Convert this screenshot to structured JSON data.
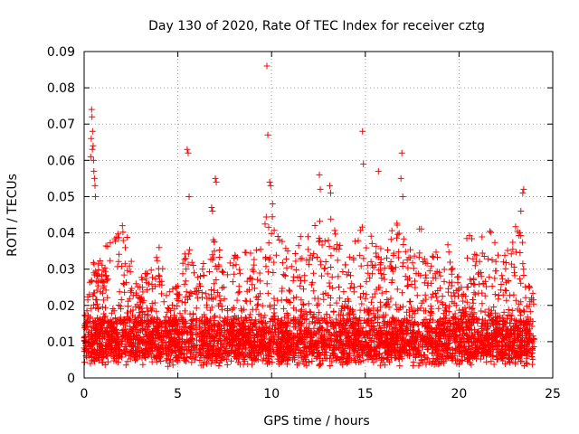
{
  "chart_data": {
    "type": "scatter",
    "title": "Day 130 of 2020, Rate Of TEC Index for receiver cztg",
    "xlabel": "GPS time / hours",
    "ylabel": "ROTI / TECUs",
    "xlim": [
      0,
      25
    ],
    "ylim": [
      0,
      0.09
    ],
    "x_ticks": [
      0,
      5,
      10,
      15,
      20,
      25
    ],
    "y_ticks": [
      0,
      0.01,
      0.02,
      0.03,
      0.04,
      0.05,
      0.06,
      0.07,
      0.08,
      0.09
    ],
    "x_tick_labels": [
      "0",
      "5",
      "10",
      "15",
      "20",
      "25"
    ],
    "y_tick_labels": [
      "0",
      "0.01",
      "0.02",
      "0.03",
      "0.04",
      "0.05",
      "0.06",
      "0.07",
      "0.08",
      "0.09"
    ],
    "grid": true,
    "marker": "+",
    "marker_color": "#ff0000",
    "time_range_hours": [
      0,
      24
    ],
    "baseline_band": [
      0.005,
      0.015
    ],
    "series": [
      {
        "name": "ROTI",
        "points": [
          [
            0.4,
            0.074
          ],
          [
            0.42,
            0.072
          ],
          [
            0.45,
            0.068
          ],
          [
            0.48,
            0.064
          ],
          [
            0.5,
            0.06
          ],
          [
            0.52,
            0.057
          ],
          [
            0.55,
            0.055
          ],
          [
            0.58,
            0.053
          ],
          [
            0.6,
            0.05
          ],
          [
            0.35,
            0.061
          ],
          [
            0.38,
            0.066
          ],
          [
            0.44,
            0.063
          ],
          [
            5.5,
            0.063
          ],
          [
            5.55,
            0.062
          ],
          [
            5.6,
            0.05
          ],
          [
            6.8,
            0.047
          ],
          [
            6.85,
            0.046
          ],
          [
            7.0,
            0.055
          ],
          [
            7.05,
            0.054
          ],
          [
            9.75,
            0.086
          ],
          [
            9.8,
            0.067
          ],
          [
            9.9,
            0.054
          ],
          [
            9.95,
            0.053
          ],
          [
            10.05,
            0.048
          ],
          [
            12.55,
            0.056
          ],
          [
            12.6,
            0.052
          ],
          [
            13.1,
            0.053
          ],
          [
            13.15,
            0.051
          ],
          [
            14.85,
            0.068
          ],
          [
            14.9,
            0.059
          ],
          [
            15.7,
            0.057
          ],
          [
            16.95,
            0.062
          ],
          [
            16.9,
            0.055
          ],
          [
            17.0,
            0.05
          ],
          [
            23.45,
            0.052
          ],
          [
            23.4,
            0.051
          ],
          [
            23.3,
            0.046
          ]
        ]
      }
    ],
    "activity_envelope": [
      [
        0.0,
        0.018
      ],
      [
        0.5,
        0.032
      ],
      [
        1.0,
        0.035
      ],
      [
        1.5,
        0.04
      ],
      [
        2.0,
        0.043
      ],
      [
        2.5,
        0.036
      ],
      [
        3.0,
        0.028
      ],
      [
        3.5,
        0.03
      ],
      [
        4.0,
        0.038
      ],
      [
        4.5,
        0.026
      ],
      [
        5.0,
        0.03
      ],
      [
        5.5,
        0.039
      ],
      [
        6.0,
        0.028
      ],
      [
        6.5,
        0.034
      ],
      [
        7.0,
        0.042
      ],
      [
        7.5,
        0.03
      ],
      [
        8.0,
        0.034
      ],
      [
        8.5,
        0.035
      ],
      [
        9.0,
        0.036
      ],
      [
        9.5,
        0.044
      ],
      [
        10.0,
        0.045
      ],
      [
        10.5,
        0.04
      ],
      [
        11.0,
        0.036
      ],
      [
        11.5,
        0.04
      ],
      [
        12.0,
        0.044
      ],
      [
        12.5,
        0.047
      ],
      [
        13.0,
        0.046
      ],
      [
        13.5,
        0.04
      ],
      [
        14.0,
        0.034
      ],
      [
        14.5,
        0.04
      ],
      [
        15.0,
        0.044
      ],
      [
        15.5,
        0.038
      ],
      [
        16.0,
        0.036
      ],
      [
        16.5,
        0.042
      ],
      [
        17.0,
        0.044
      ],
      [
        17.5,
        0.034
      ],
      [
        18.0,
        0.044
      ],
      [
        18.5,
        0.036
      ],
      [
        19.0,
        0.034
      ],
      [
        19.5,
        0.038
      ],
      [
        20.0,
        0.034
      ],
      [
        20.5,
        0.04
      ],
      [
        21.0,
        0.038
      ],
      [
        21.5,
        0.042
      ],
      [
        22.0,
        0.04
      ],
      [
        22.5,
        0.036
      ],
      [
        23.0,
        0.042
      ],
      [
        23.5,
        0.04
      ],
      [
        24.0,
        0.022
      ]
    ]
  }
}
